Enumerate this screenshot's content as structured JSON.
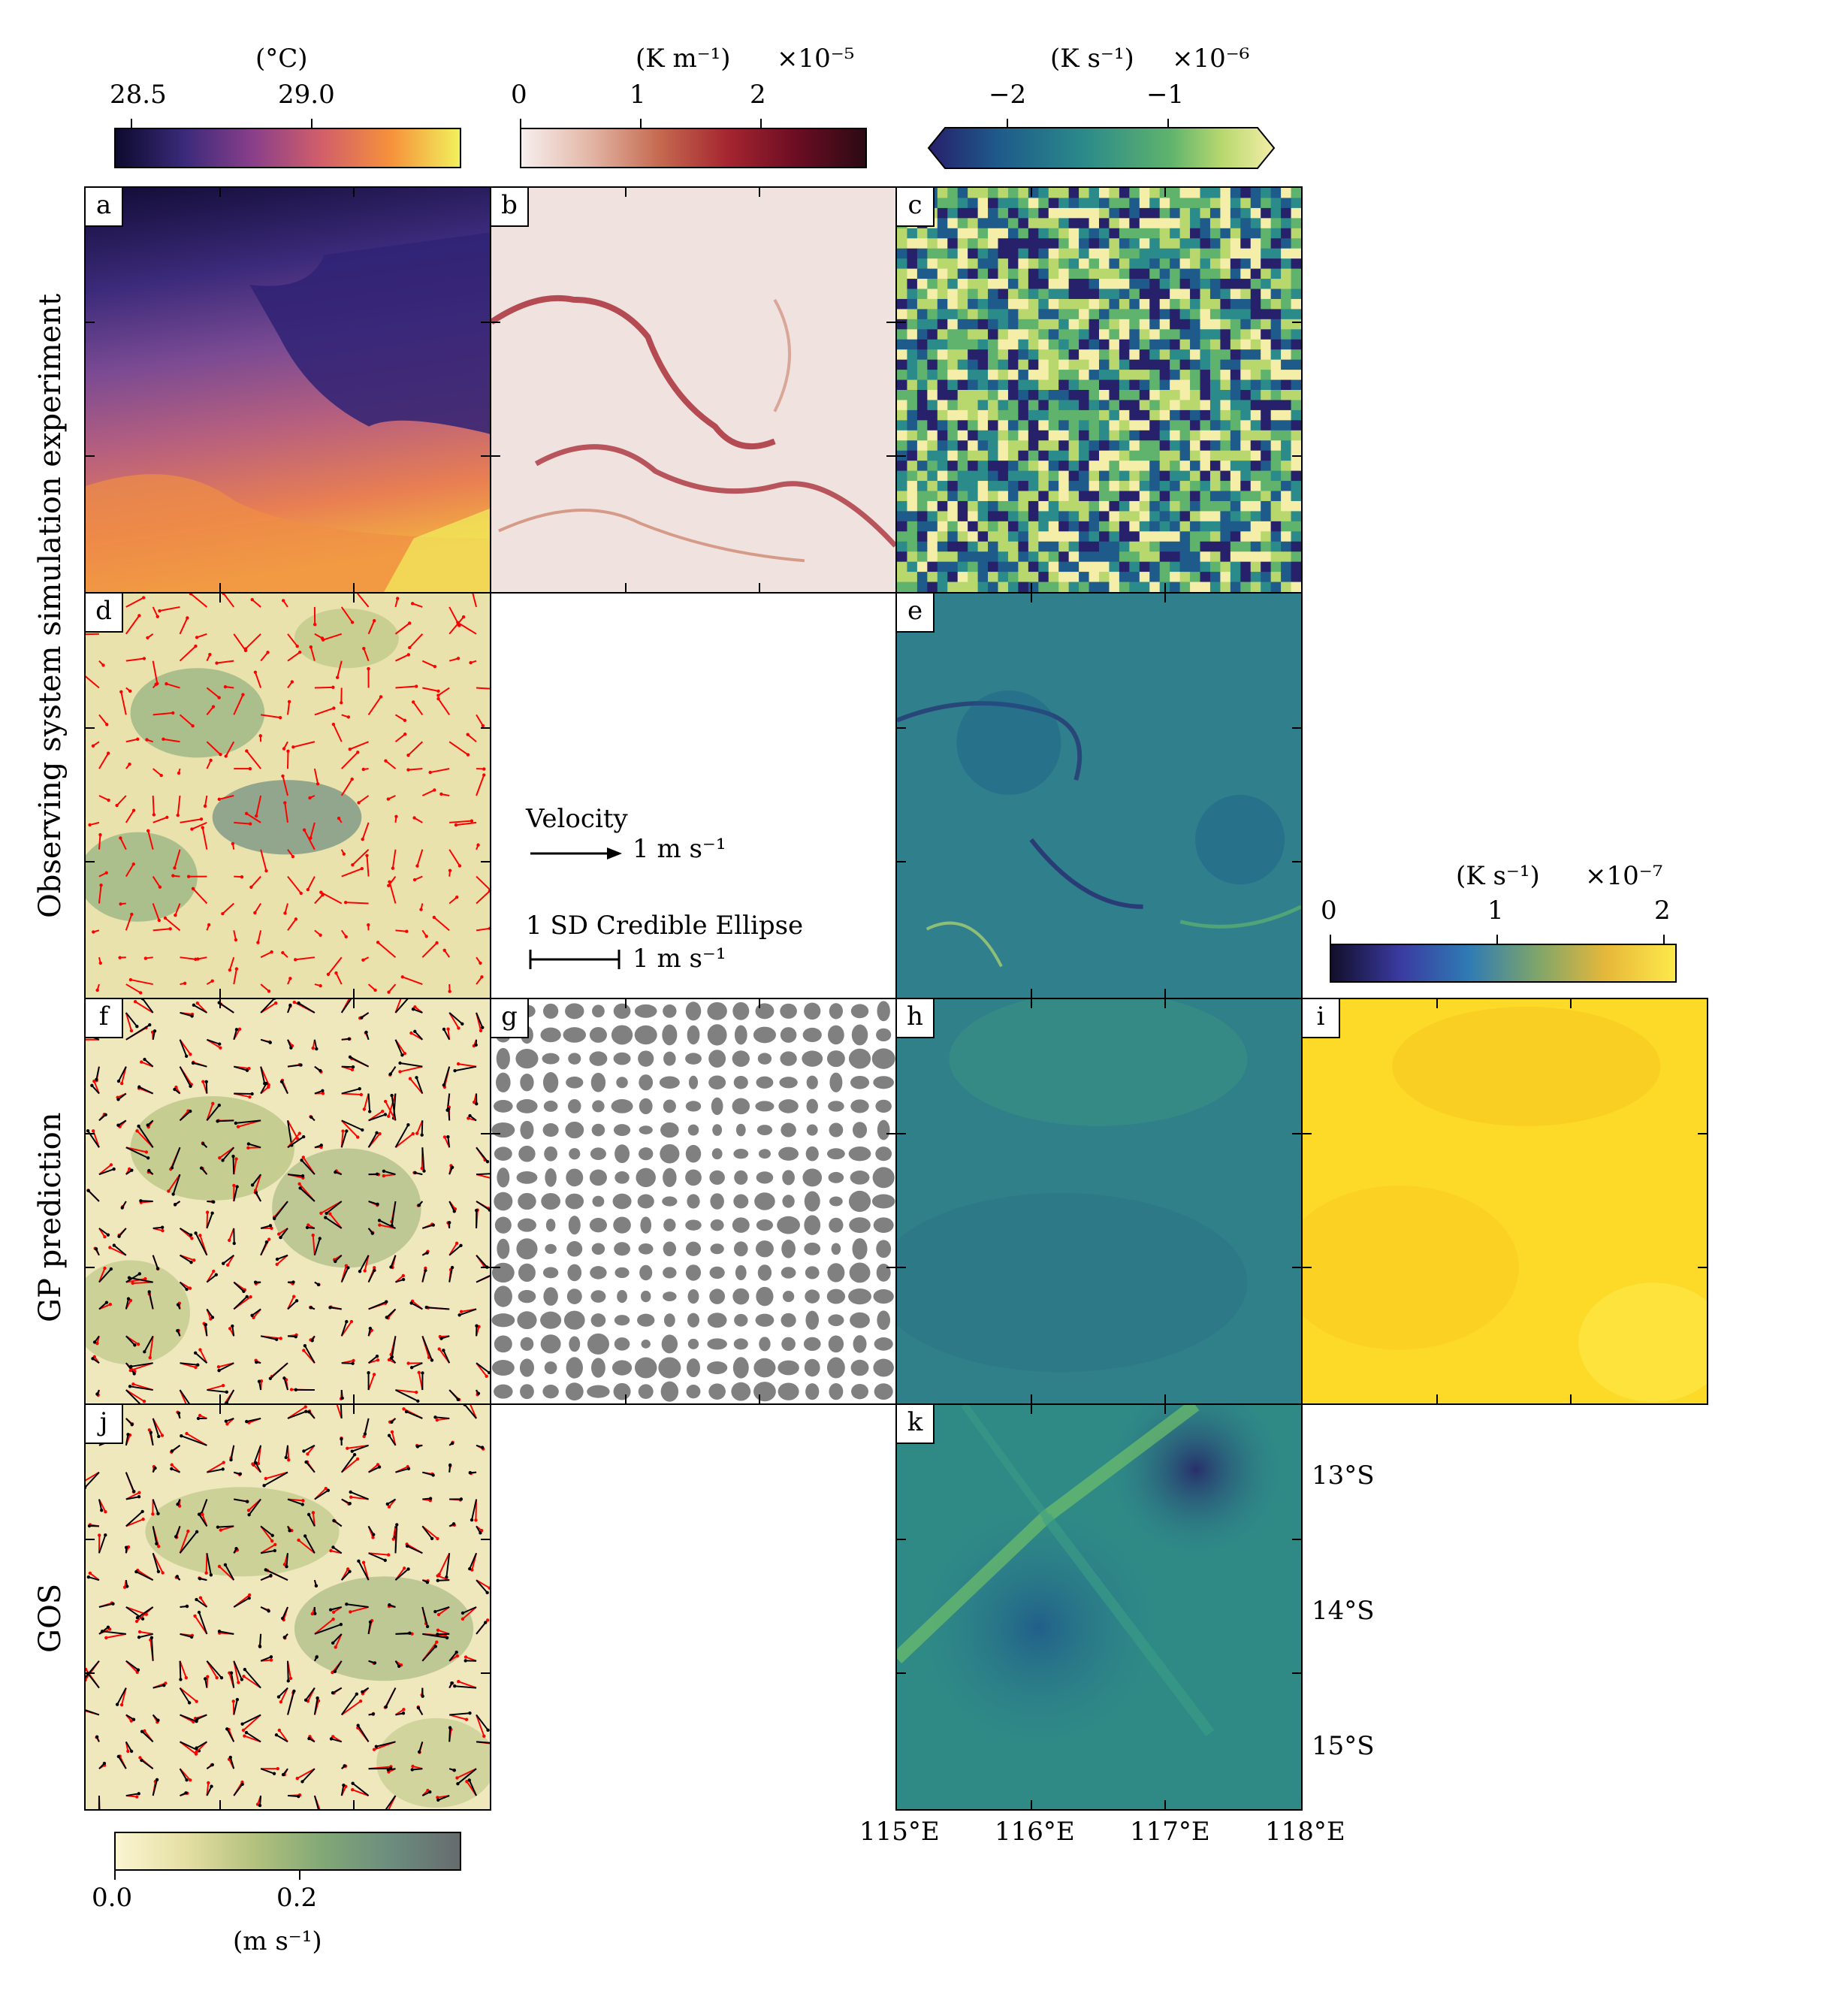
{
  "row_labels": {
    "osse": "Observing system simulation experiment",
    "gp": "GP prediction",
    "gos": "GOS"
  },
  "panel_labels": [
    "a",
    "b",
    "c",
    "d",
    "e",
    "f",
    "g",
    "h",
    "i",
    "j",
    "k"
  ],
  "colorbars": {
    "sst": {
      "unit": "(°C)",
      "ticks": [
        "28.5",
        "29.0"
      ],
      "colormap": [
        "#0d0a2e",
        "#3b2a7a",
        "#8a3f8a",
        "#d25f6a",
        "#f6913b",
        "#f1f15c"
      ]
    },
    "gradient": {
      "unit": "(K m⁻¹)",
      "multiplier": "×10⁻⁵",
      "ticks": [
        "0",
        "1",
        "2"
      ],
      "colormap": [
        "#f7efee",
        "#e3b6a6",
        "#c56a50",
        "#a52530",
        "#6b0d23",
        "#2c0a14"
      ]
    },
    "divergence": {
      "unit": "(K s⁻¹)",
      "multiplier": "×10⁻⁶",
      "ticks": [
        "−2",
        "−1"
      ],
      "colormap": [
        "#27206b",
        "#1e5a8a",
        "#2b8a8a",
        "#5fb36d",
        "#b8d86e",
        "#f4eea8"
      ]
    },
    "uncertainty": {
      "unit": "(K s⁻¹)",
      "multiplier": "×10⁻⁷",
      "ticks": [
        "0",
        "1",
        "2"
      ],
      "colormap": [
        "#120f2b",
        "#3a3aa0",
        "#2f7bb4",
        "#7fa56a",
        "#e7b83a",
        "#fde94a"
      ]
    },
    "speed": {
      "unit": "(m s⁻¹)",
      "ticks": [
        "0.0",
        "0.2"
      ],
      "colormap": [
        "#fbf5d2",
        "#e5dfa4",
        "#b4c27e",
        "#82a876",
        "#6c8d7f",
        "#666b6d"
      ]
    }
  },
  "legend": {
    "velocity_title": "Velocity",
    "velocity_scale": "1 m s⁻¹",
    "ellipse_title": "1 SD Credible Ellipse",
    "ellipse_scale": "1 m s⁻¹"
  },
  "axes": {
    "lat_labels": [
      "13°S",
      "14°S",
      "15°S"
    ],
    "lon_labels": [
      "115°E",
      "116°E",
      "117°E",
      "118°E"
    ]
  },
  "panel_colors": {
    "a": "#5a3f8c",
    "b": "#efe2df",
    "c": "#3b8c8c",
    "d": "#e9e2ad",
    "e": "#2f7f8c",
    "f": "#efe8bd",
    "g": "#ffffff",
    "h": "#2f8088",
    "i": "#fed82a",
    "j": "#efe8bd",
    "k": "#2c7f8a"
  },
  "arrow_colors": {
    "truth": "#ff0000",
    "estimate": "#000000"
  },
  "ellipse_color": "#808080"
}
